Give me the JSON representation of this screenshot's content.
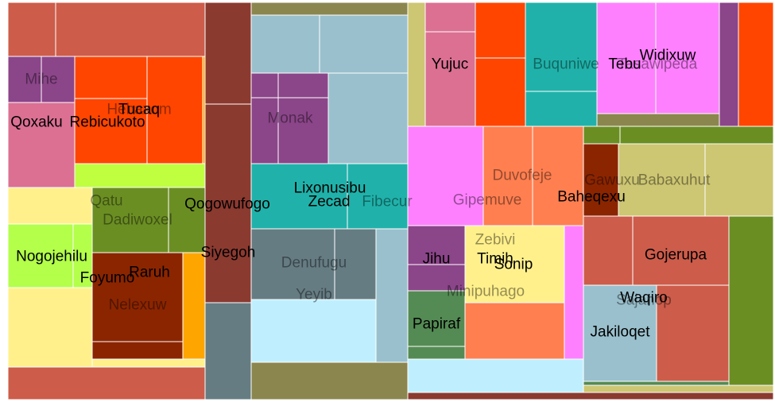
{
  "chart_data": {
    "type": "treemap",
    "cells": [
      {
        "label": "Mihe",
        "color": "#cd5c4a",
        "value": 0.7,
        "label_dim": true
      },
      {
        "label": "Qoxaku",
        "color": "#db7093",
        "value": 0.5,
        "label_dim": false
      },
      {
        "label": "Rebicukoto",
        "color": "#ff4500",
        "value": 1.3,
        "label_dim": false
      },
      {
        "label": "Hebaxom",
        "color": "#ff4500",
        "value": 1.5,
        "label_dim": true
      },
      {
        "label": "Tucaq",
        "color": "#ff4500",
        "value": 0.9,
        "label_dim": false
      },
      {
        "label": "Qatu",
        "color": "#6b8e23",
        "value": 0.5,
        "label_dim": true
      },
      {
        "label": "Dadiwoxel",
        "color": "#6b8e23",
        "value": 0.6,
        "label_dim": true
      },
      {
        "label": "Qogowufogo",
        "color": "#6b8e23",
        "value": 0.3,
        "label_dim": false
      },
      {
        "label": "Nogojehilu",
        "color": "#adff2f",
        "value": 0.7,
        "label_dim": false
      },
      {
        "label": "Foyumo",
        "color": "#fff08c",
        "value": 1.0,
        "label_dim": false
      },
      {
        "label": "Raruh",
        "color": "#8b2500",
        "value": 1.2,
        "label_dim": false
      },
      {
        "label": "Nelexuw",
        "color": "#8b2500",
        "value": 0.8,
        "label_dim": true
      },
      {
        "label": "Siyegoh",
        "color": "#8b3a30",
        "value": 2.1,
        "label_dim": false
      },
      {
        "label": "Monak",
        "color": "#8b4589",
        "value": 0.8,
        "label_dim": true
      },
      {
        "label": "Lixonusibu",
        "color": "#20b2aa",
        "value": 0.7,
        "label_dim": false
      },
      {
        "label": "Zecad",
        "color": "#20b2aa",
        "value": 0.6,
        "label_dim": false
      },
      {
        "label": "Fibecur",
        "color": "#20b2aa",
        "value": 0.6,
        "label_dim": true
      },
      {
        "label": "Denufugu",
        "color": "#667c83",
        "value": 1.3,
        "label_dim": false
      },
      {
        "label": "Yeyib",
        "color": "#bfefff",
        "value": 1.6,
        "label_dim": true
      },
      {
        "label": "Yujuc",
        "color": "#db7093",
        "value": 0.8,
        "label_dim": false
      },
      {
        "label": "Buquniwe",
        "color": "#20b2aa",
        "value": 1.2,
        "label_dim": true
      },
      {
        "label": "Tebu",
        "color": "#ff80ff",
        "value": 0.6,
        "label_dim": false
      },
      {
        "label": "Widixuw",
        "color": "#ff80ff",
        "value": 1.0,
        "label_dim": false
      },
      {
        "label": "Tasawipeda",
        "color": "#ff80ff",
        "value": 0.9,
        "label_dim": true
      },
      {
        "label": "Gipemuve",
        "color": "#ff80ff",
        "value": 1.1,
        "label_dim": true
      },
      {
        "label": "Duvofeje",
        "color": "#ff7f50",
        "value": 0.6,
        "label_dim": true
      },
      {
        "label": "Baheqexu",
        "color": "#ff7f50",
        "value": 0.7,
        "label_dim": false
      },
      {
        "label": "Gawuxu",
        "color": "#8b2500",
        "value": 0.3,
        "label_dim": true
      },
      {
        "label": "Babaxuhut",
        "color": "#cdc673",
        "value": 1.1,
        "label_dim": true
      },
      {
        "label": "Jihu",
        "color": "#8b4589",
        "value": 0.6,
        "label_dim": false
      },
      {
        "label": "Zebivi",
        "color": "#fff08c",
        "value": 0.5,
        "label_dim": true
      },
      {
        "label": "Timih",
        "color": "#fff08c",
        "value": 0.5,
        "label_dim": false
      },
      {
        "label": "Sonip",
        "color": "#fff08c",
        "value": 0.5,
        "label_dim": false
      },
      {
        "label": "Minipuhago",
        "color": "#ff7f50",
        "value": 1.2,
        "label_dim": true
      },
      {
        "label": "Papiraf",
        "color": "#548b54",
        "value": 0.6,
        "label_dim": false
      },
      {
        "label": "Gojerupa",
        "color": "#cd5c4a",
        "value": 1.2,
        "label_dim": false
      },
      {
        "label": "Waqiro",
        "color": "#cd5c4a",
        "value": 0.9,
        "label_dim": false
      },
      {
        "label": "Sajanop",
        "color": "#cd5c4a",
        "value": 0.5,
        "label_dim": true
      },
      {
        "label": "Jakiloqet",
        "color": "#9ac0cd",
        "value": 0.9,
        "label_dim": false
      }
    ]
  }
}
